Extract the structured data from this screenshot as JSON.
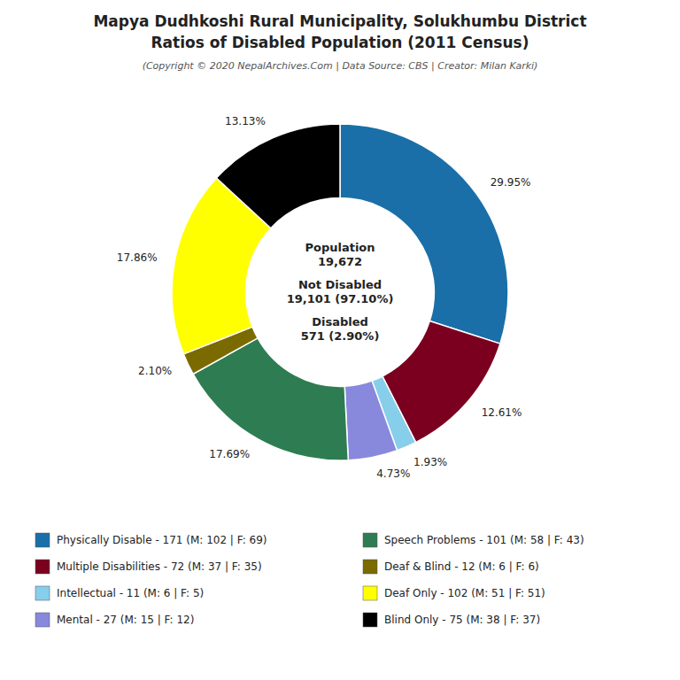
{
  "chart_data": {
    "type": "pie",
    "title": [
      "Mapya Dudhkoshi Rural Municipality, Solukhumbu District",
      "Ratios of Disabled Population (2011 Census)"
    ],
    "subtitle": "(Copyright © 2020 NepalArchives.Com | Data Source: CBS | Creator: Milan Karki)",
    "categories": [
      "Physically Disable - 171 (M: 102 | F: 69)",
      "Multiple Disabilities - 72 (M: 37 | F: 35)",
      "Intellectual - 11 (M: 6 | F: 5)",
      "Mental - 27 (M: 15 | F: 12)",
      "Speech Problems - 101 (M: 58 | F: 43)",
      "Deaf & Blind - 12 (M: 6 | F: 6)",
      "Deaf Only - 102 (M: 51 | F: 51)",
      "Blind Only - 75 (M: 38 | F: 37)"
    ],
    "values": [
      29.95,
      12.61,
      1.93,
      4.73,
      17.69,
      2.1,
      17.86,
      13.13
    ],
    "value_labels": [
      "29.95%",
      "12.61%",
      "1.93%",
      "4.73%",
      "17.69%",
      "2.10%",
      "17.86%",
      "13.13%"
    ],
    "colors": [
      "#1a6fa8",
      "#7b0020",
      "#87ceeb",
      "#8888dd",
      "#2e7d52",
      "#7a6a00",
      "#ffff00",
      "#000000"
    ],
    "data_labels": true,
    "legend": "bottom",
    "annotations": [
      "Population",
      "19,672",
      "Not Disabled",
      "19,101 (97.10%)",
      "Disabled",
      "571 (2.90%)"
    ]
  }
}
